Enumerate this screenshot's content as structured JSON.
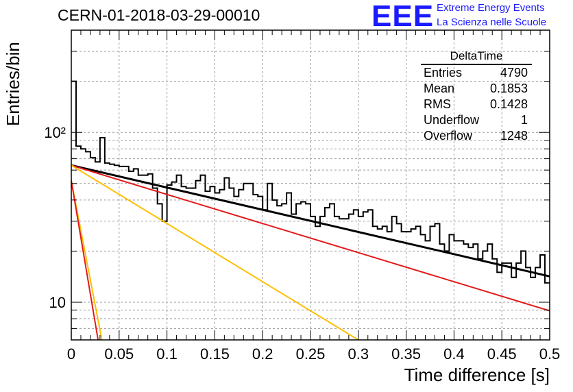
{
  "header": {
    "run_title": "CERN-01-2018-03-29-00010",
    "logo_text": "EEE",
    "logo_line1": "Extreme Energy Events",
    "logo_line2": "La Scienza nelle Scuole"
  },
  "colors": {
    "logo": "#1a1aff",
    "histogram": "#000000",
    "fit_total": "#000000",
    "fit_red": "#e41a1a",
    "fit_orange": "#ffbf00",
    "grid": "#999999"
  },
  "stats_box": {
    "title": "DeltaTime",
    "rows": [
      {
        "label": "Entries",
        "value": "4790"
      },
      {
        "label": "Mean",
        "value": "0.1853"
      },
      {
        "label": "RMS",
        "value": "0.1428"
      },
      {
        "label": "Underflow",
        "value": "1"
      },
      {
        "label": "Overflow",
        "value": "1248"
      }
    ]
  },
  "chart_data": {
    "type": "line",
    "title": "CERN-01-2018-03-29-00010",
    "xlabel": "Time difference [s]",
    "ylabel": "Entries/bin",
    "xlim": [
      0,
      0.5
    ],
    "ylim": [
      6,
      400
    ],
    "yscale": "log",
    "grid": true,
    "x_ticks": [
      "0",
      "0.05",
      "0.1",
      "0.15",
      "0.2",
      "0.25",
      "0.3",
      "0.35",
      "0.4",
      "0.45",
      "0.5"
    ],
    "y_ticks": [
      {
        "value": 10,
        "label": "10"
      },
      {
        "value": 100,
        "label": "10²"
      }
    ],
    "histogram": {
      "bin_width": 0.005,
      "values": [
        200,
        83,
        80,
        77,
        71,
        67,
        93,
        66,
        65,
        64,
        63,
        63,
        59,
        61,
        56,
        56,
        57,
        47,
        38,
        30,
        49,
        51,
        56,
        48,
        47,
        47,
        52,
        56,
        45,
        48,
        44,
        46,
        54,
        47,
        42,
        46,
        50,
        50,
        43,
        42,
        35,
        50,
        40,
        37,
        38,
        44,
        33,
        38,
        39,
        38,
        32,
        28,
        32,
        36,
        38,
        32,
        31,
        31,
        33,
        35,
        32,
        34,
        35,
        28,
        27,
        28,
        26,
        32,
        29,
        26,
        26,
        27,
        28,
        25,
        23,
        28,
        29,
        22,
        20,
        25,
        23,
        23,
        22,
        21,
        22,
        18,
        20,
        22,
        18,
        15,
        17,
        17,
        14,
        17,
        20,
        16,
        14,
        16,
        19,
        13
      ]
    },
    "series": [
      {
        "name": "",
        "color": "#000000",
        "x": [
          0,
          0.5
        ],
        "y": [
          64,
          14.2
        ]
      },
      {
        "name": "",
        "color": "#e41a1a",
        "x": [
          0,
          0.5
        ],
        "y": [
          64,
          8.9
        ]
      },
      {
        "name": "",
        "color": "#ffbf00",
        "x": [
          0,
          0.3
        ],
        "y": [
          64,
          6
        ]
      },
      {
        "name": "",
        "color": "#ffbf00",
        "x": [
          0,
          0.032
        ],
        "y": [
          52,
          6
        ]
      },
      {
        "name": "",
        "color": "#e41a1a",
        "x": [
          0,
          0.028
        ],
        "y": [
          52,
          6
        ]
      }
    ]
  }
}
